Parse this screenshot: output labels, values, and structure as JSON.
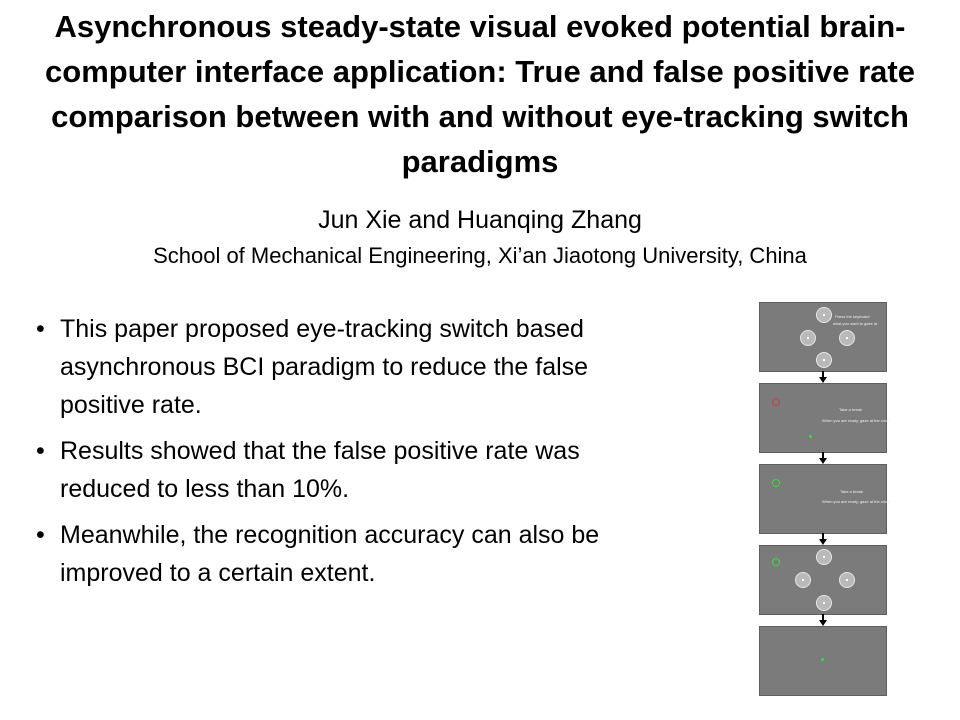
{
  "title": "Asynchronous steady-state visual evoked potential brain-computer interface application: True and false positive rate comparison between with and without eye-tracking switch paradigms",
  "authors": "Jun Xie and Huanqing Zhang",
  "affiliation": "School of Mechanical Engineering, Xi’an Jiaotong University, China",
  "bullet_symbol": "•",
  "bullets": [
    "This paper proposed eye-tracking switch based asynchronous BCI paradigm to reduce the false positive rate.",
    "Results showed that the false positive rate was reduced to less than 10%.",
    "Meanwhile, the recognition accuracy can also be improved to a certain extent."
  ],
  "figure": {
    "panel1_text": [
      "Press the keyboard",
      "what you want to gaze at"
    ],
    "panel2_text": [
      "Take a break",
      "When you are ready, gaze at the circle"
    ],
    "panel3_text": [
      "Take a break",
      "When you are ready, gaze at the circle"
    ],
    "cue_red_color": "#d23a3a",
    "cue_green_color": "#3ddc3d"
  }
}
